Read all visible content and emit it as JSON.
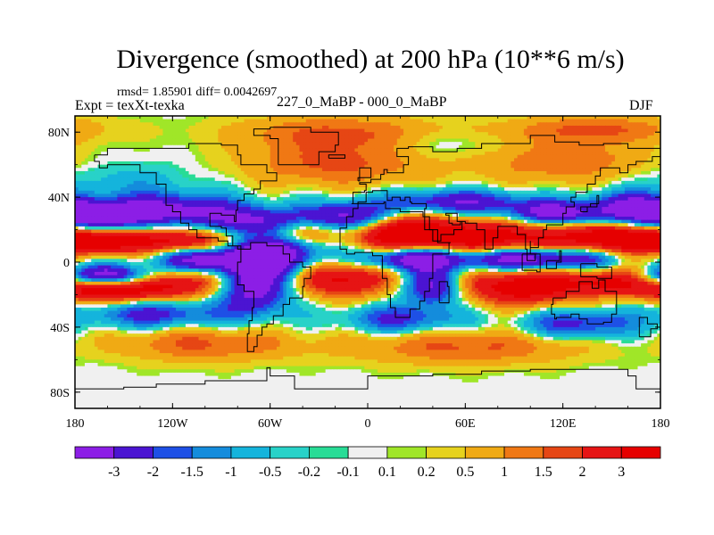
{
  "chart_data": {
    "type": "heatmap",
    "title": "Divergence (smoothed) at 200 hPa (10**6 m/s)",
    "stats_line": "rmsd= 1.85901 diff= 0.0042697",
    "expt_label": "Expt = texXt-texka",
    "period_label": "227_0_MaBP - 000_0_MaBP",
    "season_label": "DJF",
    "xlabel": "",
    "ylabel": "",
    "xlim": [
      -180,
      180
    ],
    "ylim": [
      -90,
      90
    ],
    "x_ticks": [
      {
        "value": -180,
        "label": "180"
      },
      {
        "value": -120,
        "label": "120W"
      },
      {
        "value": -60,
        "label": "60W"
      },
      {
        "value": 0,
        "label": "0"
      },
      {
        "value": 60,
        "label": "60E"
      },
      {
        "value": 120,
        "label": "120E"
      },
      {
        "value": 180,
        "label": "180"
      }
    ],
    "y_ticks": [
      {
        "value": 80,
        "label": "80N"
      },
      {
        "value": 40,
        "label": "40N"
      },
      {
        "value": 0,
        "label": "0"
      },
      {
        "value": -40,
        "label": "40S"
      },
      {
        "value": -80,
        "label": "80S"
      }
    ],
    "colorbar_levels": [
      "-3",
      "-2",
      "-1.5",
      "-1",
      "-0.5",
      "-0.2",
      "-0.1",
      "0.1",
      "0.2",
      "0.5",
      "1",
      "1.5",
      "2",
      "3"
    ],
    "colorbar_colors": [
      "#8c1ee6",
      "#4b14d2",
      "#1e50e6",
      "#148cdc",
      "#14b4dc",
      "#28d2c8",
      "#28dc96",
      "#f0f0f0",
      "#a0e628",
      "#e6d21e",
      "#f0aa14",
      "#f07814",
      "#e64614",
      "#e61414",
      "#e60000"
    ],
    "features": [
      {
        "lon": -165,
        "lat": 28,
        "amp": -4.2,
        "sx": 18,
        "sy": 6
      },
      {
        "lon": -120,
        "lat": 32,
        "amp": -3.5,
        "sx": 30,
        "sy": 7
      },
      {
        "lon": -60,
        "lat": 25,
        "amp": -3.2,
        "sx": 25,
        "sy": 6
      },
      {
        "lon": -10,
        "lat": 28,
        "amp": -3.5,
        "sx": 18,
        "sy": 6
      },
      {
        "lon": 55,
        "lat": 37,
        "amp": -3.0,
        "sx": 32,
        "sy": 5
      },
      {
        "lon": 115,
        "lat": 30,
        "amp": -3.8,
        "sx": 20,
        "sy": 5
      },
      {
        "lon": 162,
        "lat": 33,
        "amp": -3.6,
        "sx": 18,
        "sy": 7
      },
      {
        "lon": -160,
        "lat": 13,
        "amp": 4.0,
        "sx": 22,
        "sy": 6
      },
      {
        "lon": -110,
        "lat": 12,
        "amp": 3.6,
        "sx": 18,
        "sy": 6
      },
      {
        "lon": -40,
        "lat": 20,
        "amp": 2.8,
        "sx": 15,
        "sy": 6
      },
      {
        "lon": 20,
        "lat": 18,
        "amp": 4.2,
        "sx": 20,
        "sy": 8
      },
      {
        "lon": 75,
        "lat": 15,
        "amp": 3.8,
        "sx": 30,
        "sy": 8
      },
      {
        "lon": 150,
        "lat": 15,
        "amp": 4.0,
        "sx": 25,
        "sy": 7
      },
      {
        "lon": -100,
        "lat": 2,
        "amp": -4.2,
        "sx": 25,
        "sy": 6
      },
      {
        "lon": -55,
        "lat": 5,
        "amp": -4.0,
        "sx": 18,
        "sy": 8
      },
      {
        "lon": 25,
        "lat": 2,
        "amp": -4.0,
        "sx": 22,
        "sy": 5
      },
      {
        "lon": 100,
        "lat": 2,
        "amp": -4.5,
        "sx": 35,
        "sy": 5
      },
      {
        "lon": -160,
        "lat": -8,
        "amp": -3.6,
        "sx": 22,
        "sy": 4
      },
      {
        "lon": -70,
        "lat": -15,
        "amp": -3.8,
        "sx": 15,
        "sy": 12
      },
      {
        "lon": 40,
        "lat": -15,
        "amp": -3.2,
        "sx": 12,
        "sy": 8
      },
      {
        "lon": -160,
        "lat": -18,
        "amp": 3.6,
        "sx": 22,
        "sy": 5
      },
      {
        "lon": -115,
        "lat": -12,
        "amp": 3.2,
        "sx": 20,
        "sy": 7
      },
      {
        "lon": -15,
        "lat": -10,
        "amp": 3.5,
        "sx": 20,
        "sy": 8
      },
      {
        "lon": 95,
        "lat": -15,
        "amp": 4.0,
        "sx": 25,
        "sy": 8
      },
      {
        "lon": 150,
        "lat": -12,
        "amp": 3.0,
        "sx": 20,
        "sy": 6
      },
      {
        "lon": -130,
        "lat": -32,
        "amp": -2.4,
        "sx": 30,
        "sy": 6
      },
      {
        "lon": 20,
        "lat": -35,
        "amp": -2.2,
        "sx": 25,
        "sy": 6
      },
      {
        "lon": 130,
        "lat": -38,
        "amp": -2.4,
        "sx": 25,
        "sy": 6
      },
      {
        "lon": -100,
        "lat": -50,
        "amp": 1.6,
        "sx": 40,
        "sy": 8
      },
      {
        "lon": 60,
        "lat": -52,
        "amp": 1.6,
        "sx": 50,
        "sy": 8
      },
      {
        "lon": -20,
        "lat": 60,
        "amp": 1.6,
        "sx": 40,
        "sy": 10
      },
      {
        "lon": 120,
        "lat": 62,
        "amp": 1.4,
        "sx": 40,
        "sy": 10
      },
      {
        "lon": -20,
        "lat": 80,
        "amp": 1.5,
        "sx": 45,
        "sy": 8
      },
      {
        "lon": 140,
        "lat": 82,
        "amp": 1.5,
        "sx": 40,
        "sy": 6
      },
      {
        "lon": -150,
        "lat": 50,
        "amp": -0.8,
        "sx": 30,
        "sy": 8
      },
      {
        "lon": 50,
        "lat": 72,
        "amp": -0.6,
        "sx": 25,
        "sy": 6
      }
    ],
    "coastlines": [
      [
        [
          -168,
          66
        ],
        [
          -160,
          70
        ],
        [
          -140,
          70
        ],
        [
          -125,
          70
        ],
        [
          -110,
          73
        ],
        [
          -90,
          72
        ],
        [
          -80,
          66
        ],
        [
          -78,
          60
        ],
        [
          -65,
          60
        ],
        [
          -62,
          55
        ],
        [
          -56,
          50
        ],
        [
          -66,
          45
        ],
        [
          -70,
          42
        ],
        [
          -76,
          38
        ],
        [
          -80,
          32
        ],
        [
          -81,
          25
        ],
        [
          -82,
          29
        ],
        [
          -90,
          30
        ],
        [
          -97,
          28
        ],
        [
          -97,
          22
        ],
        [
          -90,
          21
        ],
        [
          -87,
          16
        ],
        [
          -83,
          10
        ],
        [
          -78,
          8
        ],
        [
          -80,
          10
        ],
        [
          -86,
          13
        ],
        [
          -92,
          15
        ],
        [
          -105,
          20
        ],
        [
          -110,
          24
        ],
        [
          -115,
          31
        ],
        [
          -120,
          35
        ],
        [
          -124,
          40
        ],
        [
          -124,
          48
        ],
        [
          -130,
          55
        ],
        [
          -140,
          60
        ],
        [
          -150,
          60
        ],
        [
          -160,
          58
        ],
        [
          -165,
          62
        ],
        [
          -168,
          66
        ]
      ],
      [
        [
          -78,
          8
        ],
        [
          -72,
          12
        ],
        [
          -62,
          10
        ],
        [
          -52,
          5
        ],
        [
          -48,
          0
        ],
        [
          -40,
          -3
        ],
        [
          -35,
          -6
        ],
        [
          -35,
          -10
        ],
        [
          -39,
          -15
        ],
        [
          -40,
          -22
        ],
        [
          -48,
          -26
        ],
        [
          -52,
          -33
        ],
        [
          -58,
          -38
        ],
        [
          -62,
          -40
        ],
        [
          -65,
          -45
        ],
        [
          -68,
          -52
        ],
        [
          -70,
          -55
        ],
        [
          -74,
          -52
        ],
        [
          -74,
          -44
        ],
        [
          -73,
          -36
        ],
        [
          -71,
          -28
        ],
        [
          -70,
          -18
        ],
        [
          -76,
          -14
        ],
        [
          -80,
          -6
        ],
        [
          -80,
          0
        ],
        [
          -78,
          8
        ]
      ],
      [
        [
          -55,
          60
        ],
        [
          -45,
          60
        ],
        [
          -30,
          68
        ],
        [
          -20,
          72
        ],
        [
          -18,
          80
        ],
        [
          -35,
          83
        ],
        [
          -60,
          82
        ],
        [
          -70,
          78
        ],
        [
          -60,
          76
        ],
        [
          -55,
          70
        ],
        [
          -55,
          60
        ]
      ],
      [
        [
          -17,
          15
        ],
        [
          -17,
          21
        ],
        [
          -13,
          28
        ],
        [
          -9,
          33
        ],
        [
          -6,
          36
        ],
        [
          10,
          37
        ],
        [
          11,
          33
        ],
        [
          20,
          31
        ],
        [
          32,
          31
        ],
        [
          34,
          28
        ],
        [
          38,
          20
        ],
        [
          43,
          12
        ],
        [
          51,
          12
        ],
        [
          50,
          5
        ],
        [
          40,
          -3
        ],
        [
          40,
          -10
        ],
        [
          38,
          -18
        ],
        [
          35,
          -24
        ],
        [
          32,
          -29
        ],
        [
          26,
          -34
        ],
        [
          19,
          -34
        ],
        [
          17,
          -28
        ],
        [
          14,
          -20
        ],
        [
          12,
          -10
        ],
        [
          9,
          -1
        ],
        [
          9,
          4
        ],
        [
          3,
          6
        ],
        [
          -8,
          5
        ],
        [
          -13,
          8
        ],
        [
          -17,
          15
        ]
      ],
      [
        [
          -10,
          36
        ],
        [
          -9,
          43
        ],
        [
          -2,
          44
        ],
        [
          -1,
          48
        ],
        [
          -5,
          49
        ],
        [
          2,
          51
        ],
        [
          8,
          54
        ],
        [
          10,
          57
        ],
        [
          12,
          55
        ],
        [
          20,
          55
        ],
        [
          22,
          60
        ],
        [
          25,
          65
        ],
        [
          18,
          70
        ],
        [
          25,
          71
        ],
        [
          40,
          68
        ],
        [
          55,
          70
        ],
        [
          70,
          73
        ],
        [
          80,
          73
        ],
        [
          100,
          78
        ],
        [
          115,
          74
        ],
        [
          130,
          72
        ],
        [
          145,
          73
        ],
        [
          160,
          70
        ],
        [
          170,
          70
        ],
        [
          180,
          68
        ],
        [
          180,
          65
        ],
        [
          175,
          62
        ],
        [
          165,
          60
        ],
        [
          160,
          55
        ],
        [
          155,
          58
        ],
        [
          143,
          53
        ],
        [
          140,
          48
        ],
        [
          135,
          43
        ],
        [
          128,
          40
        ],
        [
          125,
          37
        ],
        [
          127,
          34
        ],
        [
          122,
          30
        ],
        [
          120,
          23
        ],
        [
          110,
          20
        ],
        [
          108,
          15
        ],
        [
          105,
          9
        ],
        [
          100,
          13
        ],
        [
          100,
          5
        ],
        [
          103,
          1
        ],
        [
          98,
          8
        ],
        [
          97,
          17
        ],
        [
          92,
          22
        ],
        [
          88,
          22
        ],
        [
          80,
          15
        ],
        [
          77,
          8
        ],
        [
          72,
          20
        ],
        [
          67,
          24
        ],
        [
          60,
          25
        ],
        [
          57,
          23
        ],
        [
          52,
          24
        ],
        [
          50,
          29
        ],
        [
          48,
          30
        ],
        [
          55,
          25
        ],
        [
          58,
          20
        ],
        [
          53,
          17
        ],
        [
          45,
          13
        ],
        [
          43,
          13
        ],
        [
          40,
          20
        ],
        [
          35,
          28
        ],
        [
          35,
          33
        ],
        [
          36,
          36
        ],
        [
          30,
          36
        ],
        [
          27,
          37
        ],
        [
          26,
          40
        ],
        [
          23,
          38
        ],
        [
          20,
          40
        ],
        [
          18,
          40
        ],
        [
          15,
          38
        ],
        [
          12,
          44
        ],
        [
          7,
          44
        ],
        [
          3,
          43
        ],
        [
          -1,
          37
        ],
        [
          -6,
          36
        ],
        [
          -10,
          36
        ]
      ],
      [
        [
          114,
          -22
        ],
        [
          122,
          -18
        ],
        [
          130,
          -12
        ],
        [
          136,
          -12
        ],
        [
          138,
          -16
        ],
        [
          142,
          -11
        ],
        [
          146,
          -18
        ],
        [
          153,
          -25
        ],
        [
          153,
          -32
        ],
        [
          150,
          -37
        ],
        [
          145,
          -38
        ],
        [
          140,
          -38
        ],
        [
          135,
          -35
        ],
        [
          130,
          -32
        ],
        [
          125,
          -34
        ],
        [
          116,
          -35
        ],
        [
          115,
          -32
        ],
        [
          113,
          -26
        ],
        [
          114,
          -22
        ]
      ],
      [
        [
          -180,
          -78
        ],
        [
          -150,
          -77
        ],
        [
          -130,
          -75
        ],
        [
          -100,
          -73
        ],
        [
          -75,
          -73
        ],
        [
          -62,
          -65
        ],
        [
          -60,
          -70
        ],
        [
          -45,
          -78
        ],
        [
          -30,
          -78
        ],
        [
          0,
          -70
        ],
        [
          40,
          -69
        ],
        [
          70,
          -67
        ],
        [
          100,
          -66
        ],
        [
          130,
          -66
        ],
        [
          160,
          -70
        ],
        [
          165,
          -78
        ],
        [
          180,
          -78
        ]
      ],
      [
        [
          95,
          5
        ],
        [
          106,
          -6
        ],
        [
          104,
          -5
        ],
        [
          95,
          5
        ]
      ],
      [
        [
          110,
          1
        ],
        [
          118,
          7
        ],
        [
          119,
          0
        ],
        [
          116,
          -4
        ],
        [
          110,
          -2
        ],
        [
          110,
          1
        ]
      ],
      [
        [
          131,
          -1
        ],
        [
          141,
          -3
        ],
        [
          150,
          -10
        ],
        [
          141,
          -9
        ],
        [
          131,
          -1
        ]
      ],
      [
        [
          44,
          -25
        ],
        [
          50,
          -15
        ],
        [
          49,
          -12
        ],
        [
          44,
          -16
        ],
        [
          44,
          -25
        ]
      ],
      [
        [
          -6,
          50
        ],
        [
          -5,
          58
        ],
        [
          -2,
          58
        ],
        [
          2,
          52
        ],
        [
          -6,
          50
        ]
      ],
      [
        [
          131,
          31
        ],
        [
          135,
          34
        ],
        [
          141,
          41
        ],
        [
          142,
          36
        ],
        [
          137,
          34
        ],
        [
          131,
          31
        ]
      ],
      [
        [
          167,
          -46
        ],
        [
          174,
          -41
        ],
        [
          178,
          -38
        ],
        [
          172,
          -34
        ],
        [
          167,
          -46
        ]
      ],
      [
        [
          -24,
          64
        ],
        [
          -14,
          65
        ],
        [
          -14,
          66
        ],
        [
          -22,
          66
        ],
        [
          -24,
          64
        ]
      ]
    ]
  }
}
